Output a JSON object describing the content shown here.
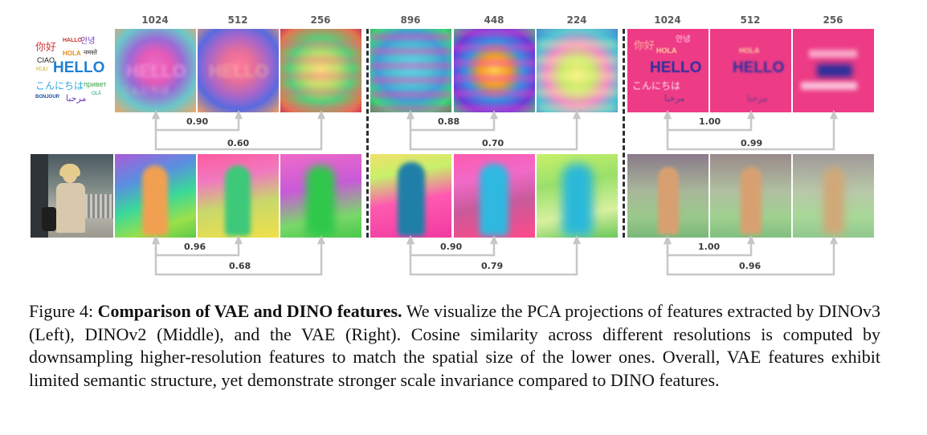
{
  "figure": {
    "resolution_labels": [
      "1024",
      "512",
      "256",
      "896",
      "448",
      "224",
      "1024",
      "512",
      "256"
    ],
    "source_text_words": [
      "你好",
      "HALLO",
      "안녕",
      "CIAO",
      "HOLA",
      "नमस्ते",
      "YEJU",
      "HELLO",
      "こんにちは",
      "привет",
      "BONJOUR",
      "مرحبا",
      "OLÁ"
    ],
    "similarity": {
      "row1": {
        "dinov3": [
          "0.90",
          "0.60"
        ],
        "dinov2": [
          "0.88",
          "0.70"
        ],
        "vae": [
          "1.00",
          "0.99"
        ]
      },
      "row2": {
        "dinov3": [
          "0.96",
          "0.68"
        ],
        "dinov2": [
          "0.90",
          "0.79"
        ],
        "vae": [
          "1.00",
          "0.96"
        ]
      }
    },
    "colors": {
      "arrow": "#c7c7c7",
      "divider": "#2b2f33",
      "vae_pink": "#ee3b86"
    }
  },
  "caption": {
    "label": "Figure 4:",
    "title": "Comparison of VAE and DINO features.",
    "body": "We visualize the PCA projections of features extracted by DINOv3 (Left), DINOv2 (Middle), and the VAE (Right). Cosine similarity across different resolutions is computed by downsampling higher-resolution features to match the spatial size of the lower ones. Overall, VAE features exhibit limited semantic structure, yet demonstrate stronger scale invariance compared to DINO features."
  }
}
